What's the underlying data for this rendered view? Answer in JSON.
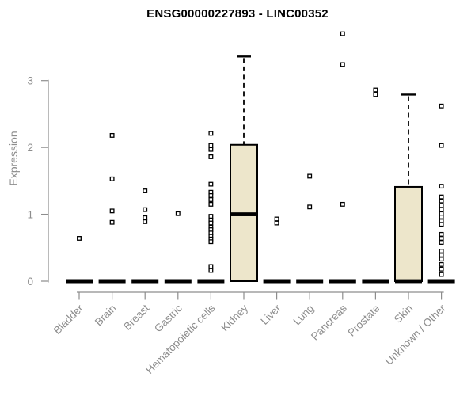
{
  "chart_data": {
    "type": "boxplot",
    "title": "ENSG00000227893 - LINC00352",
    "xlabel": "",
    "ylabel": "Expression",
    "yticks": [
      0,
      1,
      2,
      3
    ],
    "ylim": [
      0,
      3.8
    ],
    "grid": false,
    "legend": "none",
    "x_label_rotation": 45,
    "point_marker": "open-square",
    "colors": {
      "box_fill": "#EDE6CB",
      "box_stroke": "#000000",
      "median": "#000000",
      "point_stroke": "#000000",
      "point_fill": "#ffffff",
      "axis": "#8d8d8d",
      "title": "#000000"
    },
    "categories": [
      {
        "label": "Bladder",
        "box": {
          "q1": 0,
          "median": 0,
          "q3": 0
        },
        "points": [
          0.64
        ]
      },
      {
        "label": "Brain",
        "box": {
          "q1": 0,
          "median": 0,
          "q3": 0
        },
        "points": [
          2.18,
          1.53,
          1.05,
          0.88
        ]
      },
      {
        "label": "Breast",
        "box": {
          "q1": 0,
          "median": 0,
          "q3": 0
        },
        "points": [
          1.35,
          1.07,
          0.95,
          0.89
        ]
      },
      {
        "label": "Gastric",
        "box": {
          "q1": 0,
          "median": 0,
          "q3": 0
        },
        "points": [
          1.01
        ]
      },
      {
        "label": "Hematopoietic cells",
        "box": {
          "q1": 0,
          "median": 0,
          "q3": 0
        },
        "points": [
          2.21,
          2.03,
          1.97,
          1.86,
          1.45,
          1.33,
          1.28,
          1.22,
          1.15,
          0.97,
          0.91,
          0.87,
          0.81,
          0.77,
          0.72,
          0.67,
          0.63,
          0.59,
          0.22,
          0.16
        ]
      },
      {
        "label": "Kidney",
        "box": {
          "q1": 0,
          "median": 1.0,
          "q3": 2.04,
          "whisker_high": 3.36
        },
        "points": []
      },
      {
        "label": "Liver",
        "box": {
          "q1": 0,
          "median": 0,
          "q3": 0
        },
        "points": [
          0.93,
          0.87
        ]
      },
      {
        "label": "Lung",
        "box": {
          "q1": 0,
          "median": 0,
          "q3": 0
        },
        "points": [
          1.57,
          1.11
        ]
      },
      {
        "label": "Pancreas",
        "box": {
          "q1": 0,
          "median": 0,
          "q3": 0
        },
        "points": [
          3.7,
          3.24,
          1.15
        ]
      },
      {
        "label": "Prostate",
        "box": {
          "q1": 0,
          "median": 0,
          "q3": 0
        },
        "points": [
          2.86,
          2.79
        ]
      },
      {
        "label": "Skin",
        "box": {
          "q1": 0,
          "median": 0,
          "q3": 1.41,
          "whisker_high": 2.79
        },
        "points": []
      },
      {
        "label": "Unknown / Other",
        "box": {
          "q1": 0,
          "median": 0,
          "q3": 0
        },
        "points": [
          2.62,
          2.03,
          1.42,
          1.26,
          1.2,
          1.13,
          1.07,
          1.01,
          0.96,
          0.9,
          0.85,
          0.7,
          0.64,
          0.58,
          0.45,
          0.39,
          0.33,
          0.25,
          0.18,
          0.1
        ]
      }
    ]
  }
}
